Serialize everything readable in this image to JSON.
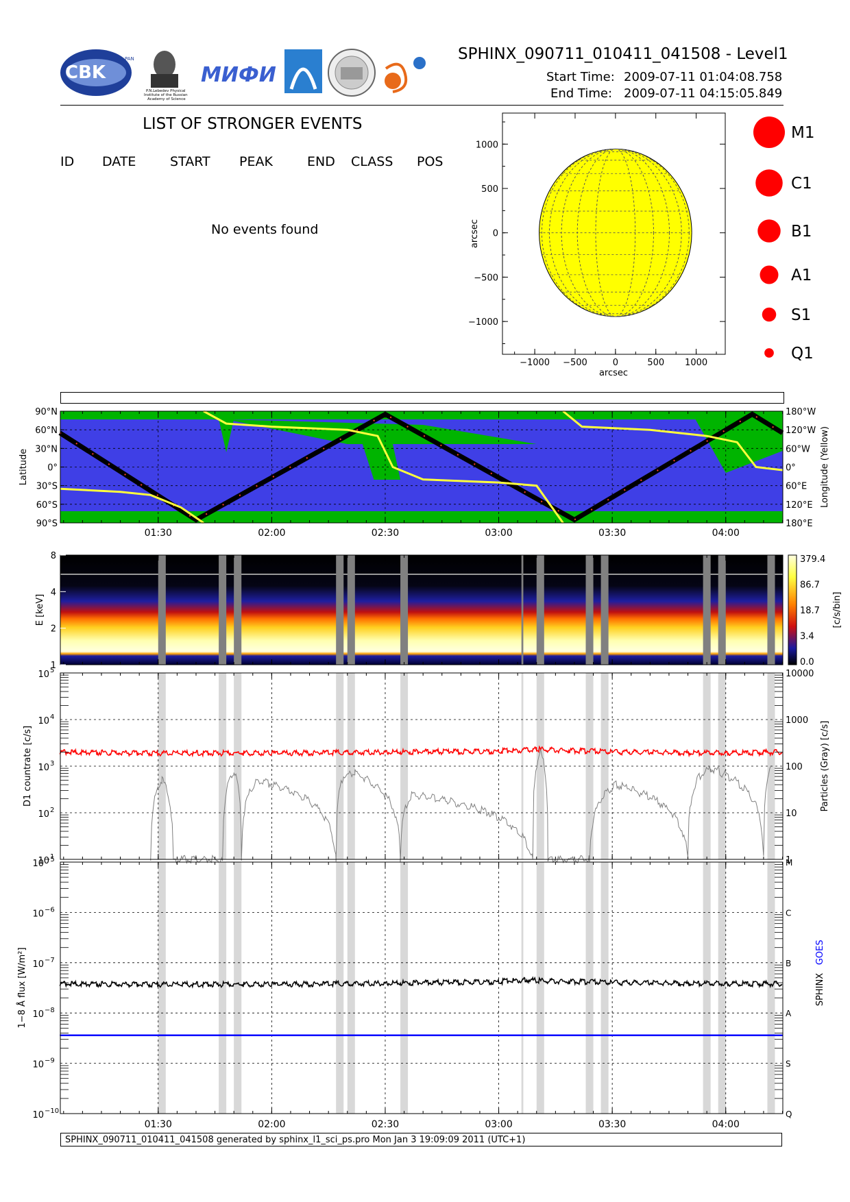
{
  "header": {
    "title": "SPHINX_090711_010411_041508 - Level1",
    "start_label": "Start Time:",
    "start_value": "2009-07-11   01:04:08.758",
    "end_label": "End Time:",
    "end_value": "2009-07-11   04:15:05.849",
    "logos": [
      {
        "name": "cbk-logo",
        "text": "CBK",
        "sub": "PAN"
      },
      {
        "name": "lebedev-logo",
        "lines": [
          "P.N.Lebedev Physical",
          "Institute of the Russian",
          "Academy of Science"
        ]
      },
      {
        "name": "mifi-logo",
        "text": "МИФИ"
      },
      {
        "name": "arch-logo"
      },
      {
        "name": "seal-logo"
      },
      {
        "name": "sun-planet-logo"
      }
    ]
  },
  "events": {
    "title": "LIST OF STRONGER EVENTS",
    "columns": [
      "ID",
      "DATE",
      "START",
      "PEAK",
      "END",
      "CLASS",
      "POS"
    ],
    "empty_message": "No events found"
  },
  "sun_map": {
    "chart_data": {
      "type": "scatter",
      "xlabel": "arcsec",
      "ylabel": "arcsec",
      "xlim": [
        -1400,
        1360
      ],
      "ylim": [
        -1370,
        1350
      ],
      "xticks": [
        -1000,
        -500,
        0,
        500,
        1000
      ],
      "yticks": [
        -1000,
        -500,
        0,
        500,
        1000
      ],
      "xtick_labels": [
        "−1000",
        "−500",
        "0",
        "500",
        "1000"
      ],
      "ytick_labels": [
        "−1000",
        "−500",
        "0",
        "500",
        "1000"
      ],
      "disk_radius": 945,
      "disk_color": "#ffff00",
      "points": []
    }
  },
  "class_legend": [
    {
      "label": "M1",
      "size": 1.0
    },
    {
      "label": "C1",
      "size": 0.83
    },
    {
      "label": "B1",
      "size": 0.67
    },
    {
      "label": "A1",
      "size": 0.5
    },
    {
      "label": "S1",
      "size": 0.33
    },
    {
      "label": "Q1",
      "size": 0.15
    }
  ],
  "orbit_panel": {
    "chart_data": {
      "type": "line",
      "ylabel_left": "Latitude",
      "ylabel_right": "Longitude (Yellow)",
      "yticks_left": [
        "90°N",
        "60°N",
        "30°N",
        "0°",
        "30°S",
        "60°S",
        "90°S"
      ],
      "yticks_right": [
        "180°W",
        "120°W",
        "60°W",
        "0°",
        "60°E",
        "120°E",
        "180°E"
      ],
      "ylim": [
        -90,
        90
      ],
      "colors": {
        "background": "#3f3fe6",
        "radiation_belt": "#00b400",
        "track": "#000000",
        "longitude": "#ffff3c"
      },
      "series": [
        {
          "x": [
            "01:04",
            "01:40",
            "02:30",
            "03:20",
            "04:07",
            "04:15"
          ],
          "y": [
            55,
            -85,
            85,
            -85,
            85,
            55
          ]
        },
        {
          "x": [
            "01:04",
            "01:20",
            "01:28",
            "01:36",
            "01:42"
          ],
          "y": [
            -35,
            -40,
            -45,
            -65,
            -90
          ]
        },
        {
          "x": [
            "01:42",
            "01:48",
            "02:00",
            "02:20",
            "02:28",
            "02:32",
            "02:40",
            "03:00",
            "03:10",
            "03:17"
          ],
          "y": [
            90,
            70,
            65,
            60,
            50,
            0,
            -20,
            -25,
            -30,
            -90
          ]
        },
        {
          "x": [
            "03:17",
            "03:22",
            "03:40",
            "03:55",
            "04:03",
            "04:08",
            "04:15"
          ],
          "y": [
            90,
            65,
            60,
            50,
            40,
            0,
            -5
          ]
        }
      ]
    }
  },
  "spectrogram": {
    "chart_data": {
      "type": "heatmap",
      "ylabel": "E [keV]",
      "yscale": "log",
      "ylim": [
        1,
        8
      ],
      "yticks": [
        1,
        2,
        4,
        8
      ],
      "colorbar_label": "[c/s/bin]",
      "colorbar_ticks": [
        "379.4",
        "86.7",
        "18.7",
        "3.4",
        "0.0"
      ]
    }
  },
  "countrate": {
    "chart_data": {
      "type": "line",
      "ylabel_left": "D1 countrate [c/s]",
      "ylabel_right": "Particles (Gray) [c/s]",
      "yscale": "log",
      "ylim": [
        10,
        100000
      ],
      "yticks_left_exp": [
        "1",
        "2",
        "3",
        "4",
        "5"
      ],
      "yticks_right": [
        "1",
        "10",
        "100",
        "1000",
        "10000"
      ],
      "series": [
        {
          "name": "D1 countrate",
          "color": "#ff0000",
          "x": [
            "01:04",
            "01:30",
            "02:00",
            "02:30",
            "03:00",
            "03:10",
            "03:30",
            "04:00",
            "04:15"
          ],
          "y": [
            2000,
            1900,
            1900,
            2000,
            2100,
            2300,
            2000,
            1900,
            2000
          ]
        },
        {
          "name": "Particles",
          "color": "#808080",
          "x": [
            "01:28",
            "01:31",
            "01:34",
            "01:47",
            "01:50",
            "01:52",
            "01:56",
            "02:17",
            "02:19",
            "02:22",
            "02:34",
            "02:37",
            "03:09",
            "03:11",
            "03:13",
            "03:24",
            "03:28",
            "03:31",
            "03:50",
            "03:53",
            "03:56",
            "04:10",
            "04:12"
          ],
          "y": [
            1,
            50,
            1,
            1,
            80,
            1,
            50,
            1,
            60,
            70,
            1,
            25,
            1,
            200,
            1,
            1,
            25,
            40,
            1,
            60,
            90,
            1,
            100
          ]
        }
      ]
    }
  },
  "flux": {
    "chart_data": {
      "type": "line",
      "ylabel": "1−8 Å flux [W/m²]",
      "yscale": "log",
      "ylim": [
        1e-10,
        1e-05
      ],
      "yticks_exp": [
        "−10",
        "−9",
        "−8",
        "−7",
        "−6",
        "−5"
      ],
      "class_ticks": [
        "Q",
        "S",
        "A",
        "B",
        "C",
        "M"
      ],
      "right_label_sphinx": "SPHINX",
      "right_label_goes": "GOES",
      "series": [
        {
          "name": "SPHINX",
          "color": "#000000",
          "x": [
            "01:04",
            "01:30",
            "02:00",
            "02:30",
            "03:00",
            "03:07",
            "03:10",
            "03:30",
            "04:00",
            "04:15"
          ],
          "y": [
            3.8e-08,
            3.7e-08,
            3.7e-08,
            3.9e-08,
            4.2e-08,
            4.6e-08,
            4.4e-08,
            4e-08,
            3.8e-08,
            3.8e-08
          ]
        },
        {
          "name": "GOES",
          "color": "#0000ff",
          "x": [
            "01:04",
            "04:15"
          ],
          "y": [
            3.6e-09,
            3.6e-09
          ]
        }
      ]
    }
  },
  "time_axis": {
    "xlim": [
      "01:04:08",
      "04:15:05"
    ],
    "tick_labels": [
      "01:30",
      "02:00",
      "02:30",
      "03:00",
      "03:30",
      "04:00"
    ],
    "gap_intervals": [
      [
        "01:30",
        "01:32"
      ],
      [
        "01:46",
        "01:48"
      ],
      [
        "01:50",
        "01:52"
      ],
      [
        "02:17",
        "02:19"
      ],
      [
        "02:20",
        "02:22"
      ],
      [
        "02:34",
        "02:36"
      ],
      [
        "03:06",
        "03:06.5"
      ],
      [
        "03:10",
        "03:12"
      ],
      [
        "03:23",
        "03:25"
      ],
      [
        "03:27",
        "03:29"
      ],
      [
        "03:54",
        "03:56"
      ],
      [
        "03:58",
        "04:00"
      ],
      [
        "04:11",
        "04:13"
      ]
    ],
    "gap_color_dark": "#808080",
    "gap_color_light": "#d8d8d8"
  },
  "footer": {
    "text": "SPHINX_090711_010411_041508 generated by sphinx_l1_sci_ps.pro Mon Jan  3 19:09:09 2011 (UTC+1)"
  }
}
